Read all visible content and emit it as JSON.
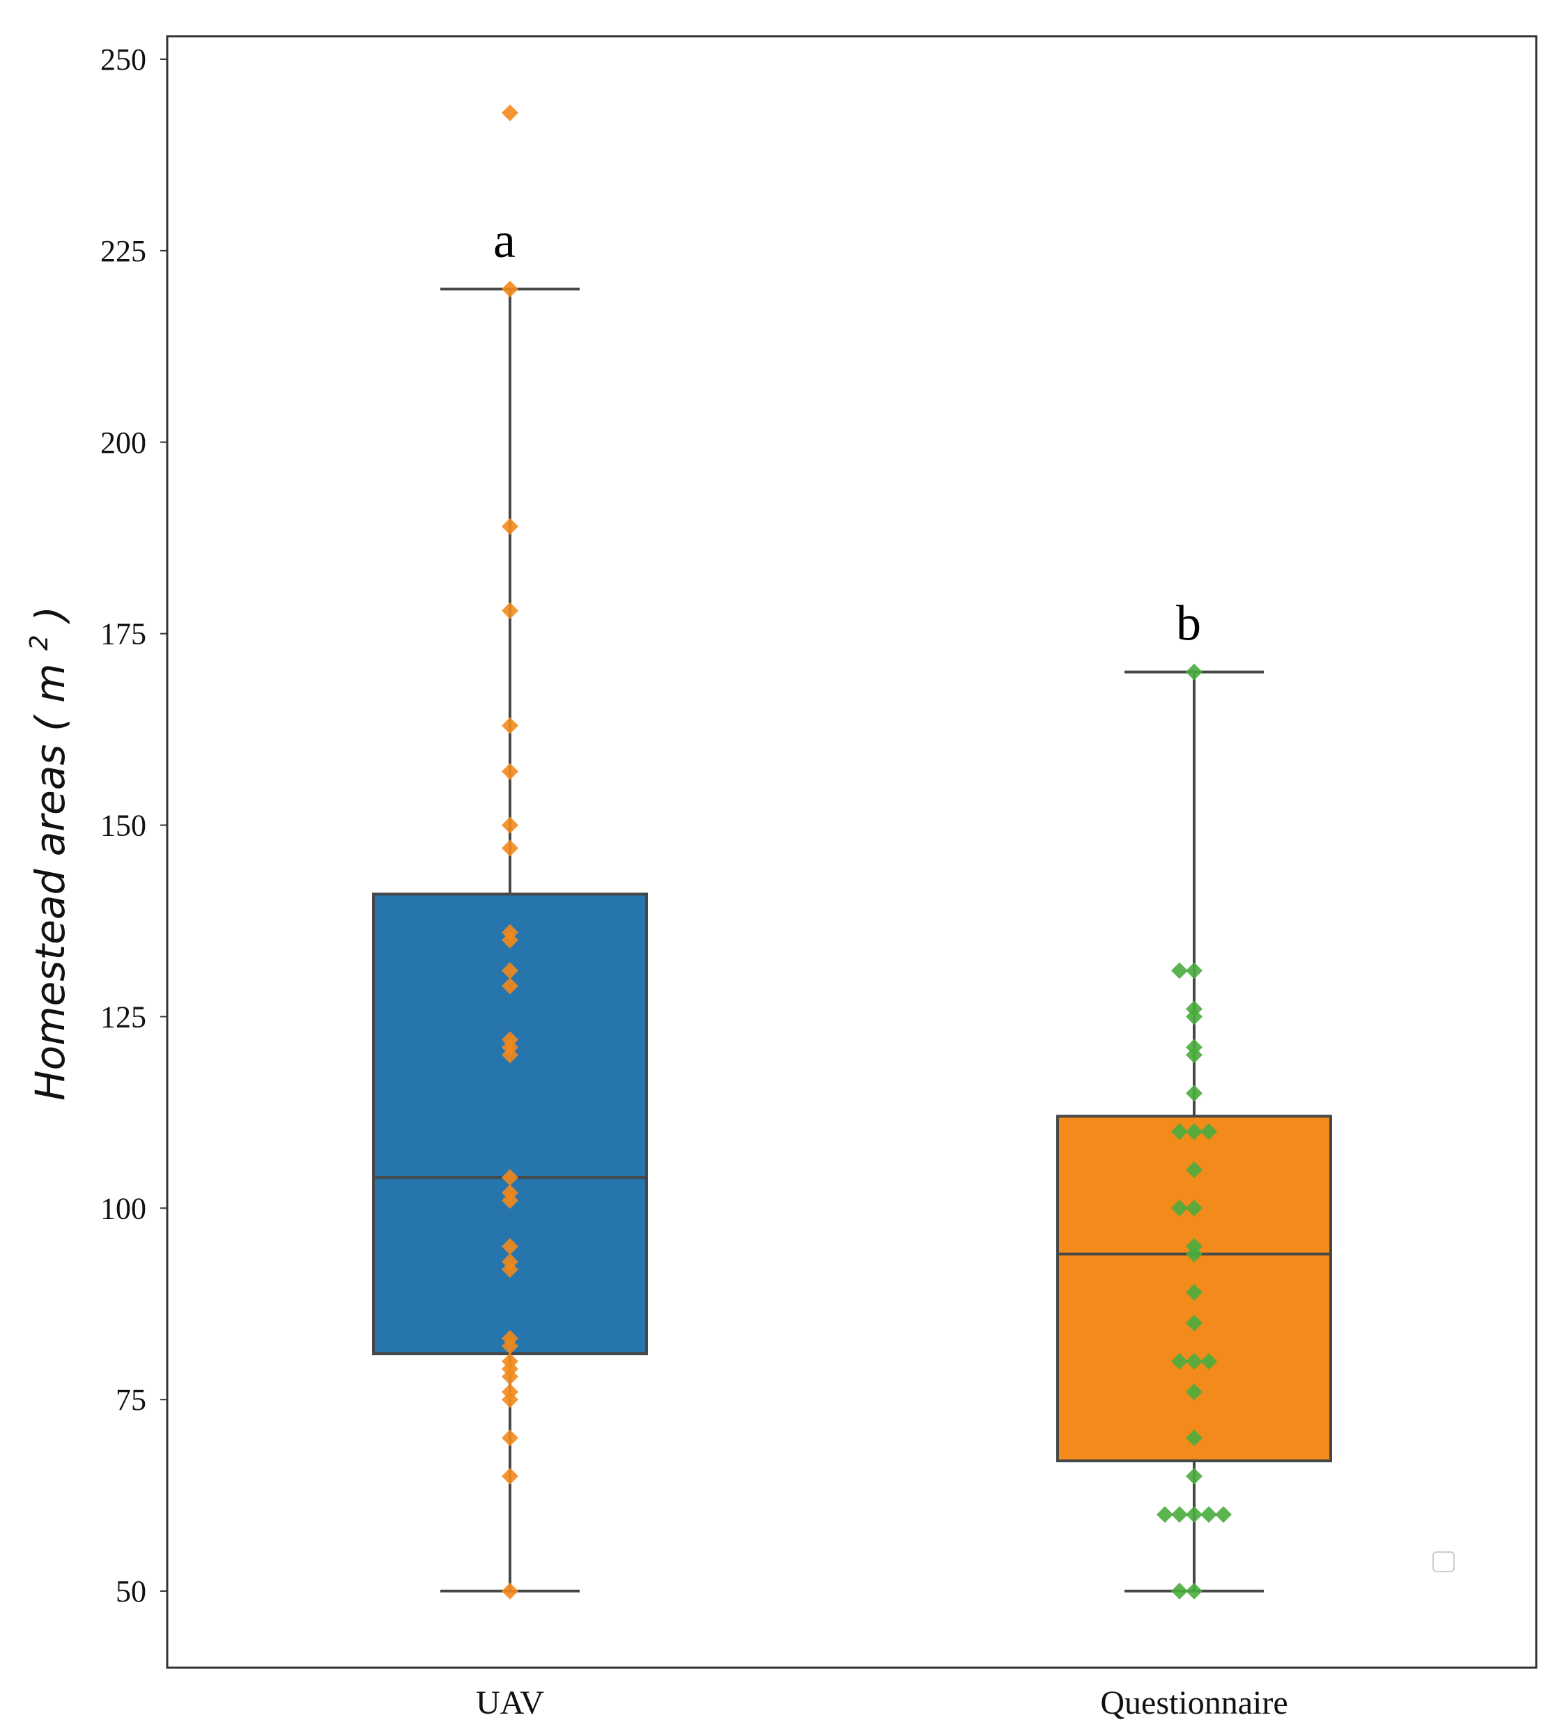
{
  "chart_data": {
    "type": "box",
    "ylabel": "Homestead areas",
    "ylabel_unit": "m",
    "ylabel_unit_power": "2",
    "ylim": [
      40,
      253
    ],
    "yticks": [
      50,
      75,
      100,
      125,
      150,
      175,
      200,
      225,
      250
    ],
    "ytick_labels": [
      "50",
      "75",
      "100",
      "125",
      "150",
      "175",
      "200",
      "225",
      "250"
    ],
    "categories": [
      "UAV",
      "Questionnaire"
    ],
    "grid": false,
    "legend": "empty legend box at lower-right",
    "series": [
      {
        "category": "UAV",
        "box_color": "#2775ad",
        "point_color": "#f28a1c",
        "group_letter": "a",
        "whisker_low": 50,
        "q1": 81,
        "median": 104,
        "q3": 141,
        "whisker_high": 220,
        "points": [
          243,
          220,
          189,
          178,
          163,
          157,
          150,
          147,
          136,
          135,
          131,
          129,
          122,
          121,
          120,
          104,
          102,
          101,
          95,
          93,
          92,
          83,
          82,
          80,
          79,
          78,
          76,
          75,
          70,
          65,
          50
        ]
      },
      {
        "category": "Questionnaire",
        "box_color": "#f28a1c",
        "point_color": "#4aac3e",
        "group_letter": "b",
        "whisker_low": 50,
        "q1": 67,
        "median": 94,
        "q3": 112,
        "whisker_high": 170,
        "points": [
          170,
          131,
          131,
          126,
          125,
          121,
          120,
          115,
          110,
          110,
          110,
          105,
          100,
          100,
          95,
          94,
          89,
          85,
          80,
          80,
          80,
          76,
          70,
          65,
          60,
          60,
          60,
          60,
          60,
          50,
          50
        ]
      }
    ]
  }
}
